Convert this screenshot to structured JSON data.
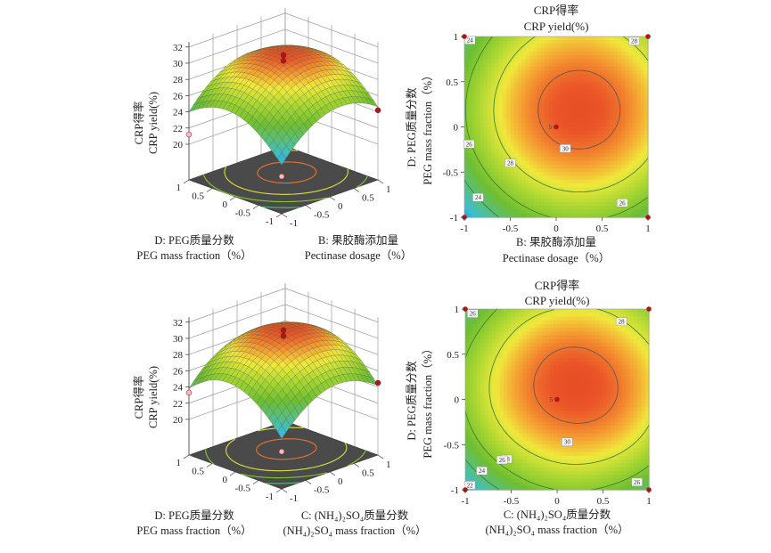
{
  "chart_data": [
    {
      "type": "surface",
      "zlabel_cn": "CRP得率",
      "zlabel_en": "CRP yield(%)",
      "z_ticks": [
        "20",
        "22",
        "24",
        "26",
        "28",
        "30",
        "32"
      ],
      "z_range": [
        20,
        32
      ],
      "left_axis": {
        "label_cn": "D: PEG质量分数",
        "label_en": "PEG mass fraction（%）",
        "ticks": [
          "1",
          "0.5",
          "0",
          "-0.5",
          "-1"
        ]
      },
      "right_axis": {
        "label_cn": "B: 果胶酶添加量",
        "label_en": "Pectinase dosage（%）",
        "ticks": [
          "-1",
          "-0.5",
          "0",
          "0.5",
          "1"
        ]
      },
      "grid_nodes": [
        -1,
        -0.5,
        0,
        0.5,
        1
      ],
      "z_grid_rows_by_left_axis": [
        [
          21.6,
          24.6,
          26.1,
          26.1,
          24.6
        ],
        [
          24.4,
          27.4,
          28.9,
          28.9,
          27.4
        ],
        [
          25.8,
          28.8,
          30.3,
          30.3,
          28.8
        ],
        [
          25.6,
          28.6,
          30.1,
          30.1,
          28.6
        ],
        [
          24.0,
          27.0,
          28.5,
          28.5,
          27.0
        ]
      ],
      "design_points": [
        {
          "right": 0,
          "left": 0,
          "z": 31.0,
          "above": true
        },
        {
          "right": 0,
          "left": 0,
          "z": 30.3,
          "above": true
        },
        {
          "right": -1,
          "left": 1,
          "z": 21.2,
          "above": false
        },
        {
          "right": 1,
          "left": -1,
          "z": 24.2,
          "above": true
        },
        {
          "right": -1,
          "left": -1,
          "z": 20.2,
          "above": false
        }
      ]
    },
    {
      "type": "contour",
      "title_cn": "CRP得率",
      "title_en": "CRP yield(%)",
      "xlabel_cn": "B: 果胶酶添加量",
      "xlabel_en": "Pectinase dosage（%）",
      "ylabel_cn": "D: PEG质量分数",
      "ylabel_en": "PEG mass fraction（%）",
      "x_ticks": [
        "-1",
        "-0.5",
        "0",
        "0.5",
        "1"
      ],
      "y_ticks": [
        "-1",
        "-0.5",
        "0",
        "0.5",
        "1"
      ],
      "levels": [
        24,
        26,
        28,
        30
      ],
      "level_labels": [
        {
          "text": "24",
          "x": -0.94,
          "y": 0.96
        },
        {
          "text": "28",
          "x": 0.85,
          "y": 0.95
        },
        {
          "text": "26",
          "x": -0.95,
          "y": -0.19
        },
        {
          "text": "28",
          "x": -0.5,
          "y": -0.4
        },
        {
          "text": "30",
          "x": 0.1,
          "y": -0.24
        },
        {
          "text": "24",
          "x": -0.85,
          "y": -0.78
        },
        {
          "text": "26",
          "x": 0.72,
          "y": -0.84
        }
      ],
      "center_point_label": "5",
      "design_points": [
        [
          -1,
          1
        ],
        [
          1,
          1
        ],
        [
          -1,
          -1
        ],
        [
          1,
          -1
        ],
        [
          0,
          0
        ]
      ]
    },
    {
      "type": "surface",
      "zlabel_cn": "CRP得率",
      "zlabel_en": "CRP yield(%)",
      "z_ticks": [
        "20",
        "22",
        "24",
        "26",
        "28",
        "30",
        "32"
      ],
      "z_range": [
        20,
        32
      ],
      "left_axis": {
        "label_cn": "D: PEG质量分数",
        "label_en": "PEG mass fraction（%）",
        "ticks": [
          "1",
          "0.5",
          "0",
          "-0.5",
          "-1"
        ]
      },
      "right_axis": {
        "label_cn": "C: (NH₄)₂SO₄质量分数",
        "label_en": "(NH₄)₂SO₄ mass fraction（%）",
        "ticks": [
          "-1",
          "-0.5",
          "0",
          "0.5",
          "1"
        ]
      },
      "grid_nodes": [
        -1,
        -0.5,
        0,
        0.5,
        1
      ],
      "z_grid_rows_by_left_axis": [
        [
          21.8,
          24.6,
          26.0,
          25.8,
          24.2
        ],
        [
          24.8,
          27.7,
          29.0,
          28.9,
          27.2
        ],
        [
          26.2,
          29.1,
          30.4,
          30.3,
          28.6
        ],
        [
          25.9,
          28.7,
          30.1,
          29.9,
          28.3
        ],
        [
          23.8,
          26.7,
          28.0,
          27.9,
          26.2
        ]
      ],
      "design_points": [
        {
          "right": 0,
          "left": 0,
          "z": 31.0,
          "above": true
        },
        {
          "right": 0,
          "left": 0,
          "z": 30.3,
          "above": true
        },
        {
          "right": -1,
          "left": 1,
          "z": 23.3,
          "above": false
        },
        {
          "right": 1,
          "left": -1,
          "z": 24.5,
          "above": true
        },
        {
          "right": -1,
          "left": -1,
          "z": 20.2,
          "above": false
        }
      ]
    },
    {
      "type": "contour",
      "title_cn": "CRP得率",
      "title_en": "CRP yield(%)",
      "xlabel_cn": "C: (NH₄)₂SO₄质量分数",
      "xlabel_en": "(NH₄)₂SO₄ mass fraction（%）",
      "ylabel_cn": "D: PEG质量分数",
      "ylabel_en": "PEG mass fraction（%）",
      "x_ticks": [
        "-1",
        "-0.5",
        "0",
        "0.5",
        "1"
      ],
      "y_ticks": [
        "-1",
        "-0.5",
        "0",
        "0.5",
        "1"
      ],
      "levels": [
        22,
        24,
        26,
        28,
        30
      ],
      "level_labels": [
        {
          "text": "26",
          "x": -0.92,
          "y": 0.95
        },
        {
          "text": "28",
          "x": 0.7,
          "y": 0.86
        },
        {
          "text": "28",
          "x": -0.55,
          "y": -0.66
        },
        {
          "text": "30",
          "x": 0.11,
          "y": -0.47
        },
        {
          "text": "26",
          "x": -0.6,
          "y": -1.34
        },
        {
          "text": "24",
          "x": -0.82,
          "y": -1.58
        },
        {
          "text": "22",
          "x": -0.95,
          "y": -1.9
        },
        {
          "text": "26",
          "x": 0.87,
          "y": -1.83
        }
      ],
      "center_point_label": "5",
      "design_points": [
        [
          -1,
          1
        ],
        [
          1,
          1
        ],
        [
          -1,
          -1
        ],
        [
          1,
          -1
        ],
        [
          0,
          0
        ]
      ]
    }
  ],
  "colors": {
    "floor": "#4a4a4a",
    "design_point_high": "#b01818",
    "design_point_low": "#f4b8c0"
  }
}
